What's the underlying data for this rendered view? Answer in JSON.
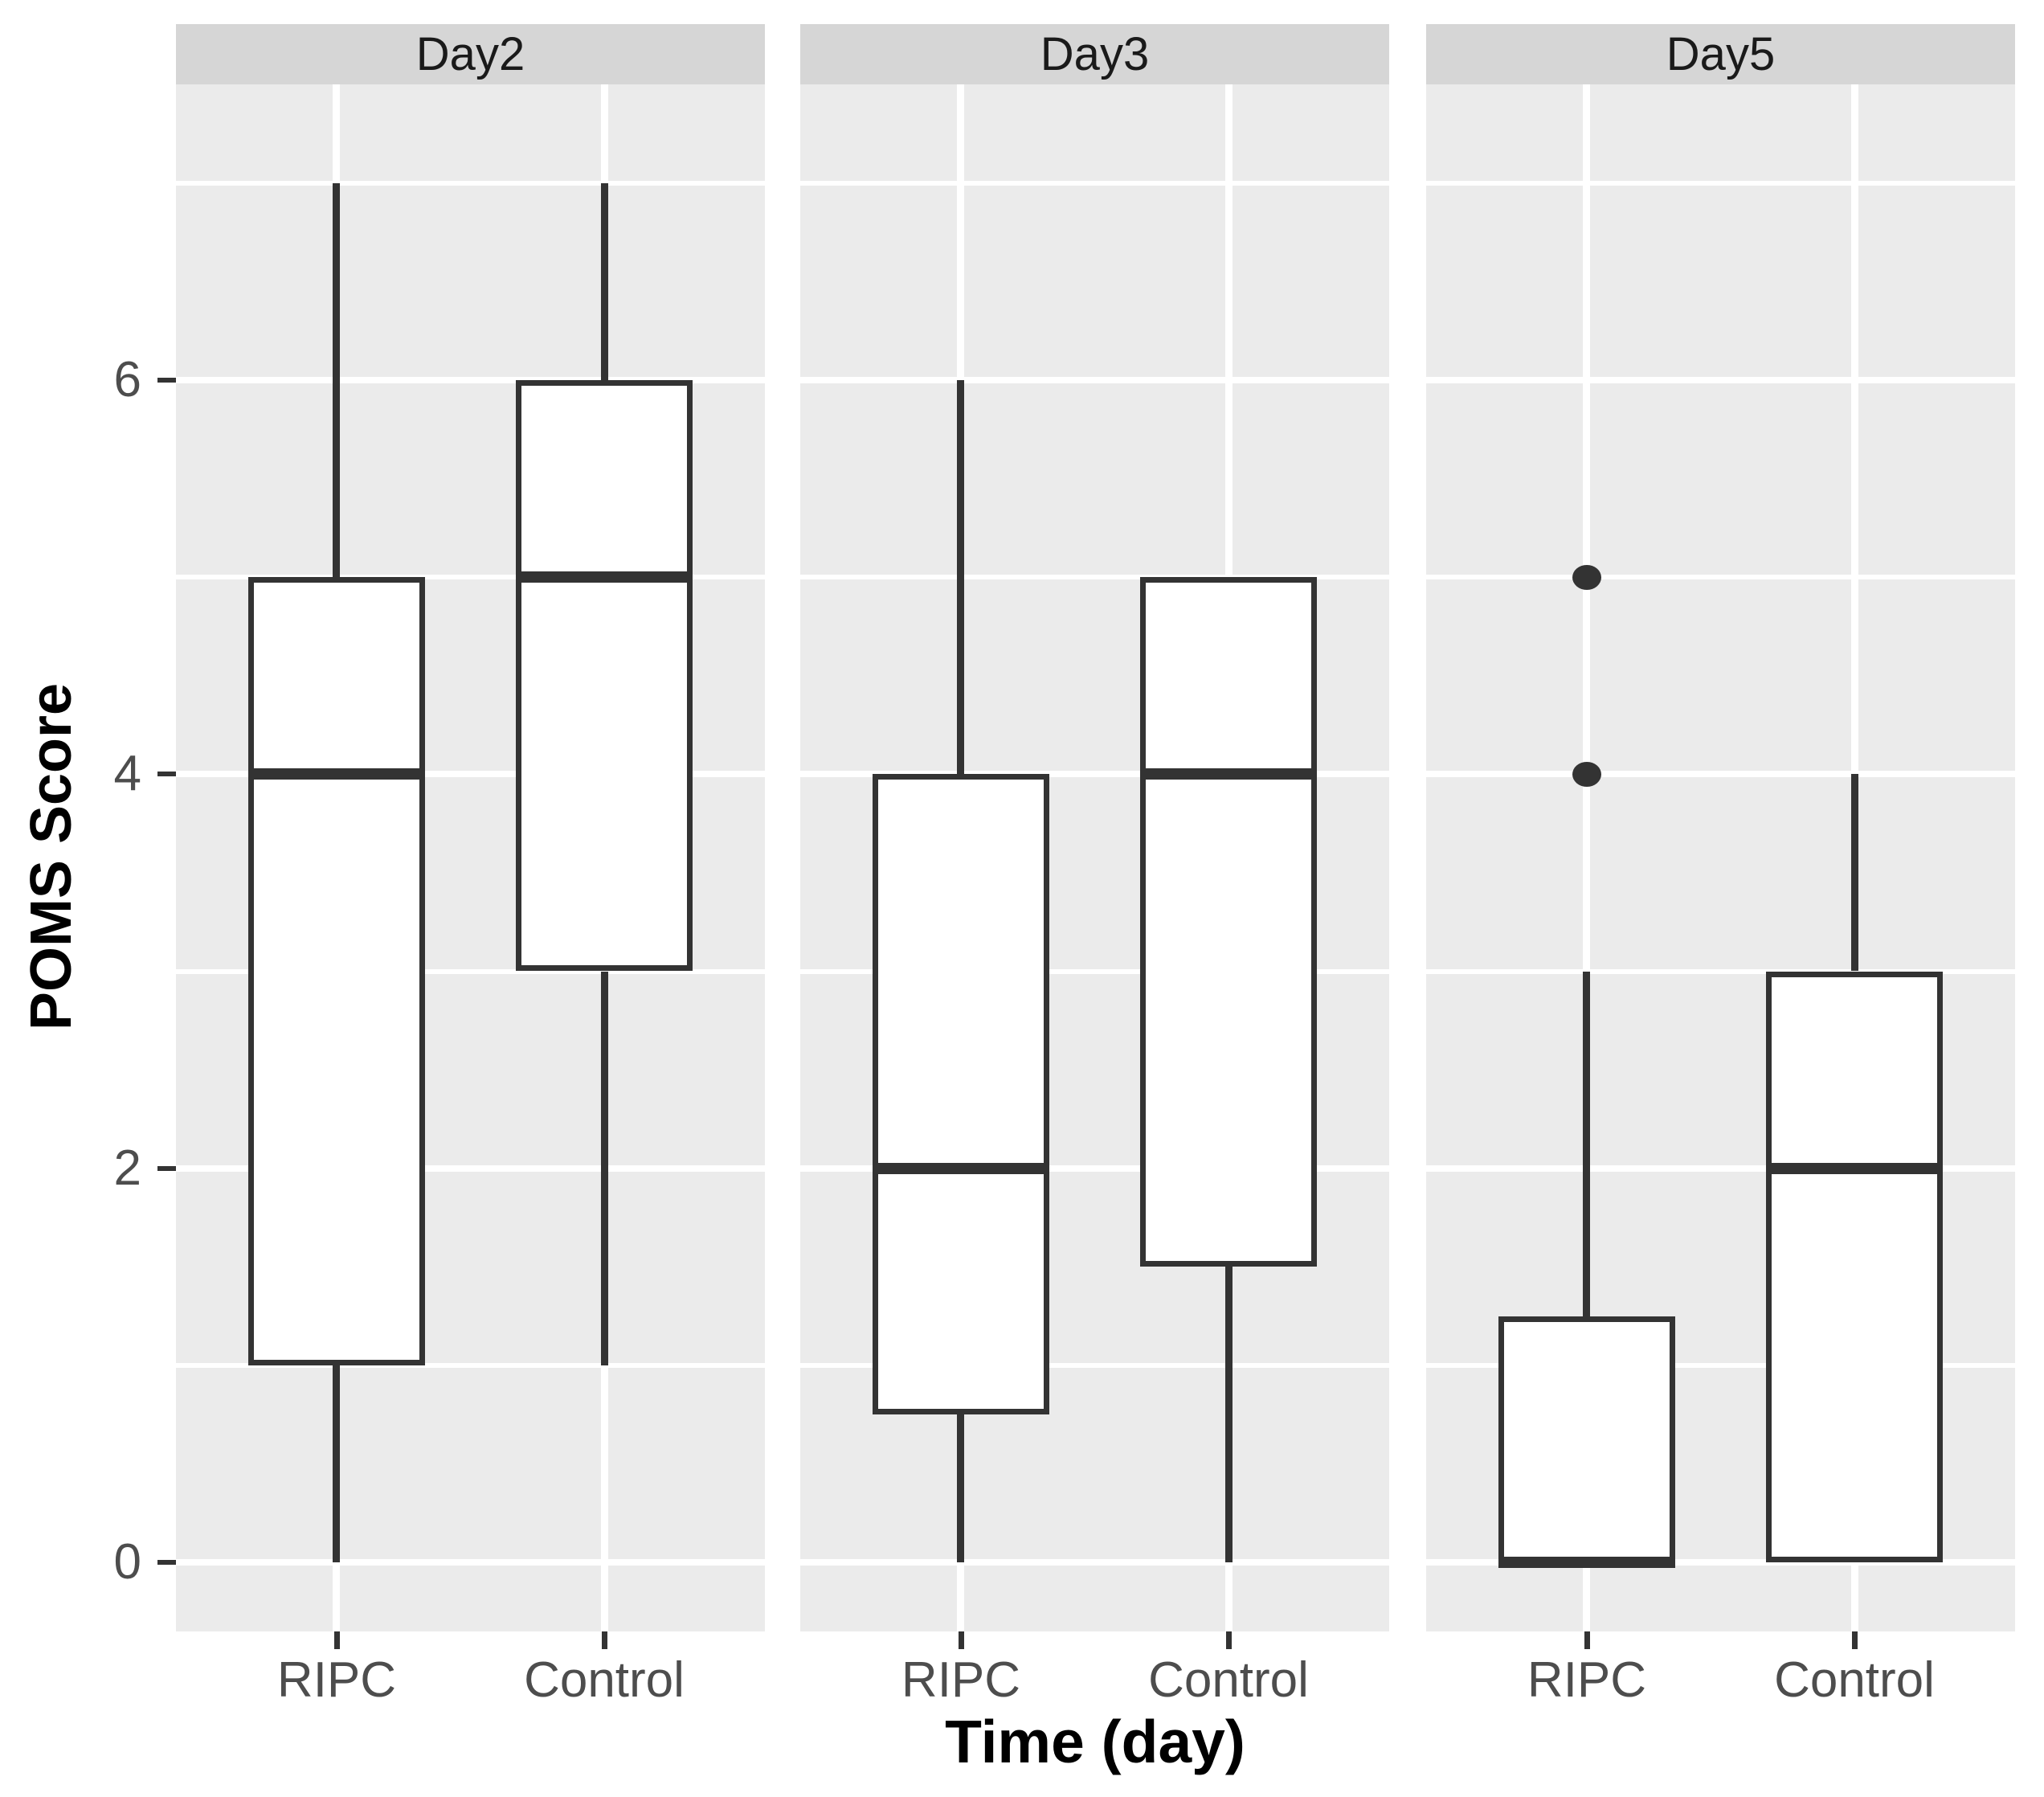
{
  "chart_data": {
    "type": "boxplot",
    "title": "",
    "xlabel": "Time (day)",
    "ylabel": "POMS Score",
    "categories": [
      "RIPC",
      "Control"
    ],
    "y_ticks": [
      0,
      2,
      4,
      6
    ],
    "y_minor_gridlines": [
      1,
      3,
      5,
      7
    ],
    "ylim": [
      -0.35,
      7.5
    ],
    "grid": true,
    "legend": "none",
    "facets": [
      {
        "label": "Day2",
        "boxes": [
          {
            "category": "RIPC",
            "whisker_low": 0,
            "q1": 1,
            "median": 4,
            "q3": 5,
            "whisker_high": 7,
            "outliers": []
          },
          {
            "category": "Control",
            "whisker_low": 1,
            "q1": 3,
            "median": 5,
            "q3": 6,
            "whisker_high": 7,
            "outliers": []
          }
        ]
      },
      {
        "label": "Day3",
        "boxes": [
          {
            "category": "RIPC",
            "whisker_low": 0,
            "q1": 0.75,
            "median": 2,
            "q3": 4,
            "whisker_high": 6,
            "outliers": []
          },
          {
            "category": "Control",
            "whisker_low": 0,
            "q1": 1.5,
            "median": 4,
            "q3": 5,
            "whisker_high": 5,
            "outliers": []
          }
        ]
      },
      {
        "label": "Day5",
        "boxes": [
          {
            "category": "RIPC",
            "whisker_low": 0,
            "q1": 0,
            "median": 0,
            "q3": 1.25,
            "whisker_high": 3,
            "outliers": [
              4,
              5
            ]
          },
          {
            "category": "Control",
            "whisker_low": 0,
            "q1": 0,
            "median": 2,
            "q3": 3,
            "whisker_high": 4,
            "outliers": []
          }
        ]
      }
    ],
    "colors": {
      "box_stroke": "#333333",
      "box_fill": "#ffffff",
      "panel_background": "#ebebeb",
      "strip_background": "#d6d6d6",
      "gridline": "#ffffff",
      "tick_label": "#4d4d4d",
      "axis_title": "#000000",
      "strip_label": "#1a1a1a"
    }
  }
}
